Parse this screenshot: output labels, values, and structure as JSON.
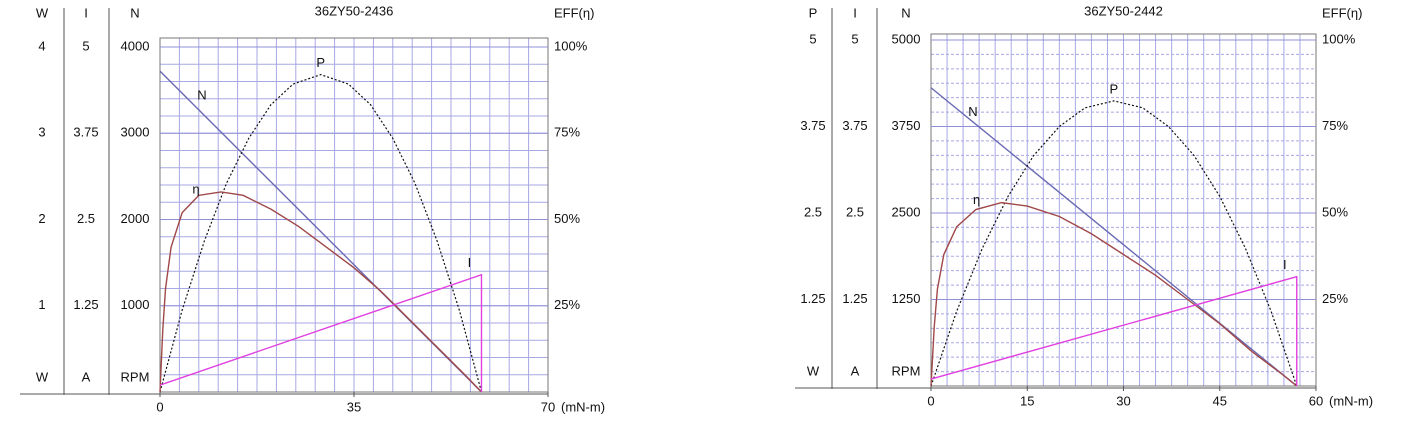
{
  "chart_data": [
    {
      "type": "line",
      "title": "36ZY50-2436",
      "xlabel": "(mN-m)",
      "xlim": [
        0,
        70
      ],
      "xticks": [
        0,
        35,
        70
      ],
      "y_axes": [
        {
          "label": "W",
          "unit": "W",
          "ylim": [
            0,
            4
          ],
          "yticks": [
            1,
            2,
            3,
            4
          ]
        },
        {
          "label": "I",
          "unit": "A",
          "ylim": [
            0,
            5
          ],
          "yticks": [
            1.25,
            2.5,
            3.75,
            5
          ]
        },
        {
          "label": "N",
          "unit": "RPM",
          "ylim": [
            0,
            4000
          ],
          "yticks": [
            1000,
            2000,
            3000,
            4000
          ]
        }
      ],
      "y2label": "EFF(η)",
      "y2lim": [
        0,
        100
      ],
      "y2ticks": [
        {
          "value": 25,
          "label": "25%"
        },
        {
          "value": 50,
          "label": "50%"
        },
        {
          "value": 75,
          "label": "75%"
        },
        {
          "value": 100,
          "label": "100%"
        }
      ],
      "grid": true,
      "series": [
        {
          "name": "N",
          "color": "#6a6ab4",
          "axis": 2,
          "x": [
            0,
            58
          ],
          "values": [
            3720,
            0
          ]
        },
        {
          "name": "P",
          "color": "#111111",
          "axis": 0,
          "x": [
            0,
            4,
            8,
            12,
            16,
            20,
            24,
            29,
            34,
            38,
            42,
            46,
            50,
            54,
            58
          ],
          "values": [
            0,
            0.95,
            1.75,
            2.42,
            2.94,
            3.33,
            3.57,
            3.68,
            3.57,
            3.33,
            2.94,
            2.42,
            1.75,
            0.95,
            0
          ]
        },
        {
          "name": "η",
          "color": "#a04848",
          "axis": "y2",
          "x": [
            0,
            0.5,
            1,
            2,
            4,
            7,
            11,
            15,
            20,
            25,
            30,
            35,
            40,
            45,
            50,
            55,
            58
          ],
          "values": [
            0,
            18,
            30,
            42,
            52,
            57,
            58,
            57,
            53,
            48,
            42,
            36,
            29,
            21,
            13,
            5,
            0
          ]
        },
        {
          "name": "I",
          "color": "#e040e0",
          "axis": 1,
          "x": [
            0,
            58,
            58
          ],
          "values": [
            0.1,
            1.7,
            0
          ]
        }
      ]
    },
    {
      "type": "line",
      "title": "36ZY50-2442",
      "xlabel": "(mN-m)",
      "xlim": [
        0,
        60
      ],
      "xticks": [
        0,
        15,
        30,
        45,
        60
      ],
      "y_axes": [
        {
          "label": "P",
          "unit": "W",
          "ylim": [
            0,
            5
          ],
          "yticks": [
            1.25,
            2.5,
            3.75,
            5
          ]
        },
        {
          "label": "I",
          "unit": "A",
          "ylim": [
            0,
            5
          ],
          "yticks": [
            1.25,
            2.5,
            3.75,
            5
          ]
        },
        {
          "label": "N",
          "unit": "RPM",
          "ylim": [
            0,
            5000
          ],
          "yticks": [
            1250,
            2500,
            3750,
            5000
          ]
        }
      ],
      "y2label": "EFF(η)",
      "y2lim": [
        0,
        100
      ],
      "y2ticks": [
        {
          "value": 25,
          "label": "25%"
        },
        {
          "value": 50,
          "label": "50%"
        },
        {
          "value": 75,
          "label": "75%"
        },
        {
          "value": 100,
          "label": "100%"
        }
      ],
      "grid": true,
      "series": [
        {
          "name": "N",
          "color": "#6a6ab4",
          "axis": 2,
          "x": [
            0,
            57
          ],
          "values": [
            4310,
            0
          ]
        },
        {
          "name": "P",
          "color": "#111111",
          "axis": 0,
          "x": [
            0,
            4,
            8,
            12,
            16,
            20,
            24,
            28.5,
            33,
            37,
            41,
            45,
            49,
            53,
            57
          ],
          "values": [
            0,
            1.08,
            1.99,
            2.74,
            3.33,
            3.75,
            4.02,
            4.12,
            4.02,
            3.75,
            3.33,
            2.74,
            1.99,
            1.08,
            0
          ]
        },
        {
          "name": "η",
          "color": "#a04848",
          "axis": "y2",
          "x": [
            0,
            0.5,
            1,
            2,
            4,
            7,
            11,
            15,
            20,
            25,
            30,
            35,
            40,
            45,
            50,
            55,
            57
          ],
          "values": [
            0,
            17,
            28,
            38,
            46,
            51,
            53,
            52,
            49,
            44,
            38,
            32,
            25,
            18,
            10,
            3,
            0
          ]
        },
        {
          "name": "I",
          "color": "#e040e0",
          "axis": 1,
          "x": [
            0,
            57,
            57
          ],
          "values": [
            0.1,
            1.58,
            0
          ]
        }
      ]
    }
  ]
}
